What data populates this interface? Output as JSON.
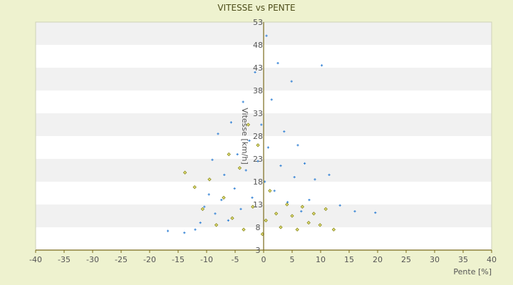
{
  "chart_data": {
    "type": "scatter",
    "title": "VITESSE vs PENTE",
    "xlabel": "Pente [%]",
    "ylabel": "Vitesse [km/h]",
    "xlim": [
      -40,
      40
    ],
    "ylim": [
      3,
      53
    ],
    "x_ticks": [
      "-40",
      "-35",
      "-30",
      "-25",
      "-20",
      "-15",
      "-10",
      "-5",
      "0",
      "5",
      "10",
      "15",
      "20",
      "25",
      "30",
      "35",
      "40"
    ],
    "y_ticks": [
      "3",
      "8",
      "13",
      "18",
      "23",
      "28",
      "33",
      "38",
      "43",
      "48",
      "53"
    ],
    "grid": "horizontal-bands",
    "legend": "none",
    "series": [
      {
        "color": "#3a86d6",
        "marker": "small-cross",
        "distribution": "dense cloud centered near x=1, y=18",
        "points": [
          [
            -16.8,
            7.2
          ],
          [
            -13.9,
            6.8
          ],
          [
            -12.0,
            7.5
          ],
          [
            -11.1,
            9.0
          ],
          [
            -10.4,
            12.5
          ],
          [
            -9.6,
            15.2
          ],
          [
            -9.0,
            22.8
          ],
          [
            -8.5,
            11.0
          ],
          [
            -8.0,
            28.5
          ],
          [
            -7.4,
            14.0
          ],
          [
            -6.9,
            19.5
          ],
          [
            -6.2,
            9.5
          ],
          [
            -5.7,
            31.0
          ],
          [
            -5.1,
            16.5
          ],
          [
            -4.6,
            24.0
          ],
          [
            -4.0,
            12.0
          ],
          [
            -3.6,
            35.5
          ],
          [
            -3.1,
            20.5
          ],
          [
            -2.5,
            27.0
          ],
          [
            -2.0,
            14.5
          ],
          [
            -1.5,
            42.0
          ],
          [
            -1.0,
            22.5
          ],
          [
            -0.4,
            30.5
          ],
          [
            0.2,
            18.0
          ],
          [
            0.5,
            50.0
          ],
          [
            0.8,
            25.5
          ],
          [
            1.4,
            36.0
          ],
          [
            1.9,
            16.0
          ],
          [
            2.5,
            44.0
          ],
          [
            3.0,
            21.5
          ],
          [
            3.6,
            29.0
          ],
          [
            4.2,
            13.5
          ],
          [
            4.9,
            40.0
          ],
          [
            5.4,
            19.0
          ],
          [
            6.0,
            26.0
          ],
          [
            6.6,
            11.5
          ],
          [
            7.2,
            22.0
          ],
          [
            8.0,
            14.0
          ],
          [
            9.0,
            18.5
          ],
          [
            10.2,
            43.5
          ],
          [
            11.5,
            19.5
          ],
          [
            13.4,
            12.8
          ],
          [
            16.0,
            11.5
          ],
          [
            19.6,
            11.2
          ]
        ]
      },
      {
        "color": "#8a8a1e",
        "marker": "small-diamond",
        "distribution": "sparser cloud concentrated at low speeds",
        "points": [
          [
            -13.8,
            20.0
          ],
          [
            -12.1,
            16.8
          ],
          [
            -10.7,
            12.0
          ],
          [
            -9.5,
            18.5
          ],
          [
            -8.3,
            8.5
          ],
          [
            -7.0,
            14.5
          ],
          [
            -6.1,
            24.0
          ],
          [
            -5.5,
            10.0
          ],
          [
            -4.2,
            21.0
          ],
          [
            -3.5,
            7.5
          ],
          [
            -2.7,
            30.5
          ],
          [
            -1.9,
            12.5
          ],
          [
            -1.0,
            26.0
          ],
          [
            -0.2,
            6.5
          ],
          [
            0.4,
            9.5
          ],
          [
            1.1,
            16.0
          ],
          [
            2.2,
            11.0
          ],
          [
            3.0,
            8.0
          ],
          [
            4.1,
            13.0
          ],
          [
            5.0,
            10.5
          ],
          [
            5.9,
            7.5
          ],
          [
            6.8,
            12.5
          ],
          [
            7.9,
            9.0
          ],
          [
            8.8,
            11.0
          ],
          [
            9.9,
            8.5
          ],
          [
            10.9,
            12.0
          ],
          [
            12.3,
            7.5
          ]
        ]
      }
    ]
  }
}
